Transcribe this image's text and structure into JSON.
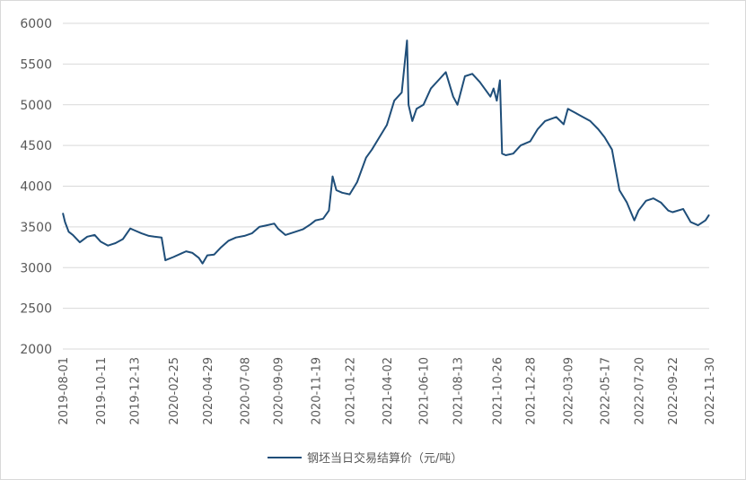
{
  "chart_data": {
    "type": "line",
    "title": "",
    "xlabel": "",
    "ylabel": "",
    "ylim": [
      2000,
      6000
    ],
    "y_ticks": [
      "6000",
      "5500",
      "5000",
      "4500",
      "4000",
      "3500",
      "3000",
      "2500",
      "2000"
    ],
    "x_ticks": [
      "2019-08-01",
      "2019-10-11",
      "2019-12-13",
      "2020-02-25",
      "2020-04-29",
      "2020-07-08",
      "2020-09-09",
      "2020-11-19",
      "2021-01-22",
      "2021-04-02",
      "2021-06-10",
      "2021-08-13",
      "2021-10-26",
      "2021-12-28",
      "2022-03-09",
      "2022-05-17",
      "2022-07-20",
      "2022-09-22",
      "2022-11-30"
    ],
    "grid": "horizontal",
    "legend_position": "bottom",
    "color": "#1f4e79",
    "series": [
      {
        "name": "钢坯当日交易结算价（元/吨）",
        "x": [
          "2019-08-01",
          "2019-08-05",
          "2019-08-12",
          "2019-08-20",
          "2019-09-02",
          "2019-09-16",
          "2019-09-30",
          "2019-10-11",
          "2019-10-25",
          "2019-11-08",
          "2019-11-22",
          "2019-12-06",
          "2019-12-13",
          "2019-12-27",
          "2020-01-10",
          "2020-01-20",
          "2020-02-03",
          "2020-02-10",
          "2020-02-25",
          "2020-03-10",
          "2020-03-20",
          "2020-04-01",
          "2020-04-13",
          "2020-04-20",
          "2020-04-29",
          "2020-05-12",
          "2020-05-25",
          "2020-06-08",
          "2020-06-22",
          "2020-07-08",
          "2020-07-22",
          "2020-08-05",
          "2020-08-19",
          "2020-09-02",
          "2020-09-09",
          "2020-09-23",
          "2020-10-12",
          "2020-10-26",
          "2020-11-09",
          "2020-11-19",
          "2020-12-03",
          "2020-12-14",
          "2020-12-21",
          "2020-12-28",
          "2021-01-08",
          "2021-01-22",
          "2021-02-05",
          "2021-02-22",
          "2021-03-05",
          "2021-03-19",
          "2021-04-02",
          "2021-04-16",
          "2021-04-30",
          "2021-05-10",
          "2021-05-13",
          "2021-05-20",
          "2021-05-28",
          "2021-06-10",
          "2021-06-24",
          "2021-07-08",
          "2021-07-22",
          "2021-08-05",
          "2021-08-13",
          "2021-08-27",
          "2021-09-10",
          "2021-09-24",
          "2021-10-14",
          "2021-10-20",
          "2021-10-26",
          "2021-11-01",
          "2021-11-05",
          "2021-11-12",
          "2021-11-26",
          "2021-12-10",
          "2021-12-28",
          "2022-01-11",
          "2022-01-25",
          "2022-02-15",
          "2022-03-01",
          "2022-03-09",
          "2022-03-23",
          "2022-04-06",
          "2022-04-20",
          "2022-05-05",
          "2022-05-17",
          "2022-05-31",
          "2022-06-14",
          "2022-06-28",
          "2022-07-12",
          "2022-07-20",
          "2022-08-03",
          "2022-08-17",
          "2022-08-31",
          "2022-09-14",
          "2022-09-22",
          "2022-10-12",
          "2022-10-26",
          "2022-11-09",
          "2022-11-23",
          "2022-11-30"
        ],
        "values": [
          3670,
          3560,
          3440,
          3400,
          3310,
          3380,
          3400,
          3320,
          3270,
          3300,
          3350,
          3480,
          3460,
          3420,
          3390,
          3380,
          3370,
          3090,
          3130,
          3170,
          3200,
          3180,
          3120,
          3050,
          3150,
          3160,
          3250,
          3330,
          3370,
          3390,
          3420,
          3500,
          3520,
          3540,
          3480,
          3400,
          3440,
          3470,
          3530,
          3580,
          3600,
          3700,
          4120,
          3950,
          3920,
          3900,
          4050,
          4350,
          4450,
          4600,
          4750,
          5050,
          5150,
          5790,
          5000,
          4800,
          4950,
          5000,
          5200,
          5300,
          5400,
          5100,
          5000,
          5350,
          5380,
          5280,
          5100,
          5200,
          5050,
          5300,
          4400,
          4380,
          4400,
          4500,
          4550,
          4700,
          4800,
          4850,
          4760,
          4950,
          4900,
          4850,
          4800,
          4700,
          4600,
          4450,
          3950,
          3800,
          3580,
          3700,
          3820,
          3850,
          3800,
          3700,
          3680,
          3720,
          3560,
          3520,
          3580,
          3650
        ]
      }
    ]
  }
}
